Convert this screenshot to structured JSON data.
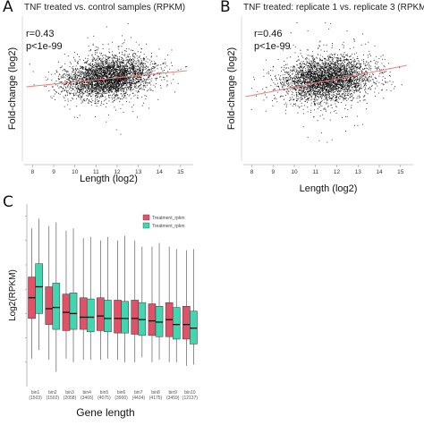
{
  "panels": {
    "a": {
      "letter": "A",
      "title": "TNF treated vs. control samples (RPKM)",
      "r": "r=0.43",
      "p": "p<1e-99"
    },
    "b": {
      "letter": "B",
      "title": "TNF treated: replicate 1 vs. replicate 3 (RPKM)",
      "r": "r=0.46",
      "p": "p<1e-99"
    },
    "c": {
      "letter": "C"
    }
  },
  "chart_data": [
    {
      "type": "scatter",
      "panel": "A",
      "title": "TNF treated vs. control samples (RPKM)",
      "xlabel": "Length (log2)",
      "ylabel": "Fold-change (log2)",
      "xlim": [
        7.6,
        15.6
      ],
      "ylim": [
        -4.5,
        3.6
      ],
      "xticks": [
        8,
        9,
        10,
        11,
        12,
        13,
        14,
        15
      ],
      "annotations": [
        "r=0.43",
        "p<1e-99"
      ],
      "cloud": {
        "x_center": 11.6,
        "x_spread": 1.05,
        "y_center": 0.2,
        "y_spread": 0.55,
        "n_points": 3600
      },
      "trend": {
        "x": [
          7.7,
          15.3
        ],
        "y": [
          -0.35,
          0.55
        ],
        "color": "#f08080"
      },
      "point_color": "#111111",
      "grid": false
    },
    {
      "type": "scatter",
      "panel": "B",
      "title": "TNF treated: replicate 1 vs. replicate 3 (RPKM)",
      "xlabel": "Length (log2)",
      "ylabel": "Fold-change (log2)",
      "xlim": [
        7.6,
        15.6
      ],
      "ylim": [
        -4.5,
        3.6
      ],
      "xticks": [
        8,
        9,
        10,
        11,
        12,
        13,
        14,
        15
      ],
      "annotations": [
        "r=0.46",
        "p<1e-99"
      ],
      "cloud": {
        "x_center": 11.5,
        "x_spread": 1.05,
        "y_center": 0.1,
        "y_spread": 0.6,
        "n_points": 3600
      },
      "trend": {
        "x": [
          7.7,
          15.3
        ],
        "y": [
          -0.9,
          0.85
        ],
        "color": "#f08080"
      },
      "point_color": "#111111",
      "grid": false
    },
    {
      "type": "box",
      "panel": "C",
      "xlabel": "Gene length",
      "ylabel": "Log2(RPKM)",
      "ylim": [
        -2,
        13
      ],
      "legend": {
        "position": "top-right",
        "entries": [
          "Treatment_rpkm",
          "Treatment_rpkm"
        ]
      },
      "series": [
        {
          "name": "Treatment_rpkm",
          "color": "#e05268"
        },
        {
          "name": "Treatment_rpkm",
          "color": "#3fd6b0"
        }
      ],
      "categories": [
        {
          "short": "bin1",
          "count": "(1503)"
        },
        {
          "short": "bin2",
          "count": "(1502)"
        },
        {
          "short": "bin3",
          "count": "(2058)"
        },
        {
          "short": "bin4",
          "count": "(3465)"
        },
        {
          "short": "bin5",
          "count": "(4075)"
        },
        {
          "short": "bin6",
          "count": "(3900)"
        },
        {
          "short": "bin7",
          "count": "(4434)"
        },
        {
          "short": "bin8",
          "count": "(4175)"
        },
        {
          "short": "bin9",
          "count": "(3459)"
        },
        {
          "short": "bin10",
          "count": "(12137)"
        }
      ],
      "boxes": [
        [
          {
            "wlo": 0.3,
            "q1": 3.6,
            "med": 5.3,
            "q3": 7.0,
            "whi": 11.0
          },
          {
            "wlo": 1.0,
            "q1": 4.0,
            "med": 6.2,
            "q3": 8.1,
            "whi": 11.8
          }
        ],
        [
          {
            "wlo": 0.2,
            "q1": 3.1,
            "med": 4.4,
            "q3": 6.2,
            "whi": 11.2
          },
          {
            "wlo": -0.8,
            "q1": 2.7,
            "med": 4.5,
            "q3": 6.5,
            "whi": 11.5
          }
        ],
        [
          {
            "wlo": 0.3,
            "q1": 2.6,
            "med": 4.1,
            "q3": 5.6,
            "whi": 10.8
          },
          {
            "wlo": 0.0,
            "q1": 2.7,
            "med": 4.0,
            "q3": 5.7,
            "whi": 11.0
          }
        ],
        [
          {
            "wlo": 0.2,
            "q1": 2.7,
            "med": 3.7,
            "q3": 5.3,
            "whi": 10.2
          },
          {
            "wlo": 0.2,
            "q1": 2.5,
            "med": 3.7,
            "q3": 5.2,
            "whi": 10.3
          }
        ],
        [
          {
            "wlo": 0.2,
            "q1": 2.6,
            "med": 3.8,
            "q3": 5.3,
            "whi": 10.0
          },
          {
            "wlo": 0.3,
            "q1": 2.5,
            "med": 3.6,
            "q3": 5.1,
            "whi": 10.3
          }
        ],
        [
          {
            "wlo": 0.2,
            "q1": 2.4,
            "med": 3.6,
            "q3": 5.1,
            "whi": 10.0
          },
          {
            "wlo": 0.0,
            "q1": 2.4,
            "med": 3.6,
            "q3": 5.0,
            "whi": 10.4
          }
        ],
        [
          {
            "wlo": 0.0,
            "q1": 2.3,
            "med": 3.6,
            "q3": 5.1,
            "whi": 10.0
          },
          {
            "wlo": 0.4,
            "q1": 2.2,
            "med": 3.5,
            "q3": 4.9,
            "whi": 9.5
          }
        ],
        [
          {
            "wlo": 0.0,
            "q1": 2.2,
            "med": 3.4,
            "q3": 4.8,
            "whi": 9.5
          },
          {
            "wlo": 0.2,
            "q1": 2.1,
            "med": 3.3,
            "q3": 4.6,
            "whi": 9.8
          }
        ],
        [
          {
            "wlo": 0.0,
            "q1": 2.1,
            "med": 3.5,
            "q3": 4.9,
            "whi": 9.5
          },
          {
            "wlo": 0.0,
            "q1": 1.9,
            "med": 3.1,
            "q3": 4.5,
            "whi": 9.3
          }
        ],
        [
          {
            "wlo": -0.3,
            "q1": 1.9,
            "med": 3.1,
            "q3": 4.6,
            "whi": 9.2
          },
          {
            "wlo": -0.2,
            "q1": 1.5,
            "med": 2.8,
            "q3": 4.2,
            "whi": 9.3
          }
        ]
      ]
    }
  ]
}
